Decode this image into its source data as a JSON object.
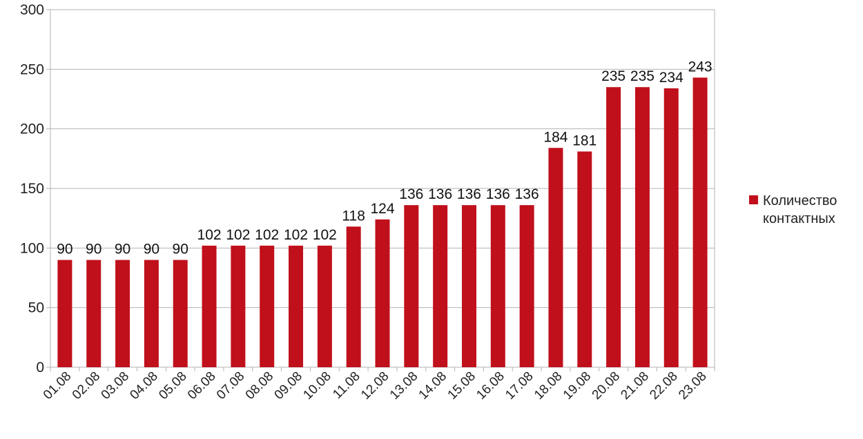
{
  "chart_data": {
    "type": "bar",
    "categories": [
      "01.08",
      "02.08",
      "03.08",
      "04.08",
      "05.08",
      "06.08",
      "07.08",
      "08.08",
      "09.08",
      "10.08",
      "11.08",
      "12.08",
      "13.08",
      "14.08",
      "15.08",
      "16.08",
      "17.08",
      "18.08",
      "19.08",
      "20.08",
      "21.08",
      "22.08",
      "23.08"
    ],
    "series": [
      {
        "name": "Количество контактных",
        "values": [
          90,
          90,
          90,
          90,
          90,
          102,
          102,
          102,
          102,
          102,
          118,
          124,
          136,
          136,
          136,
          136,
          136,
          184,
          181,
          235,
          235,
          234,
          243
        ]
      }
    ],
    "ylim": [
      0,
      300
    ],
    "yticks": [
      0,
      50,
      100,
      150,
      200,
      250,
      300
    ],
    "title": "",
    "xlabel": "",
    "ylabel": "",
    "grid": true,
    "legend_position": "right",
    "bar_color": "#c0101b",
    "grid_color": "#b3b3b3",
    "data_labels": true
  }
}
